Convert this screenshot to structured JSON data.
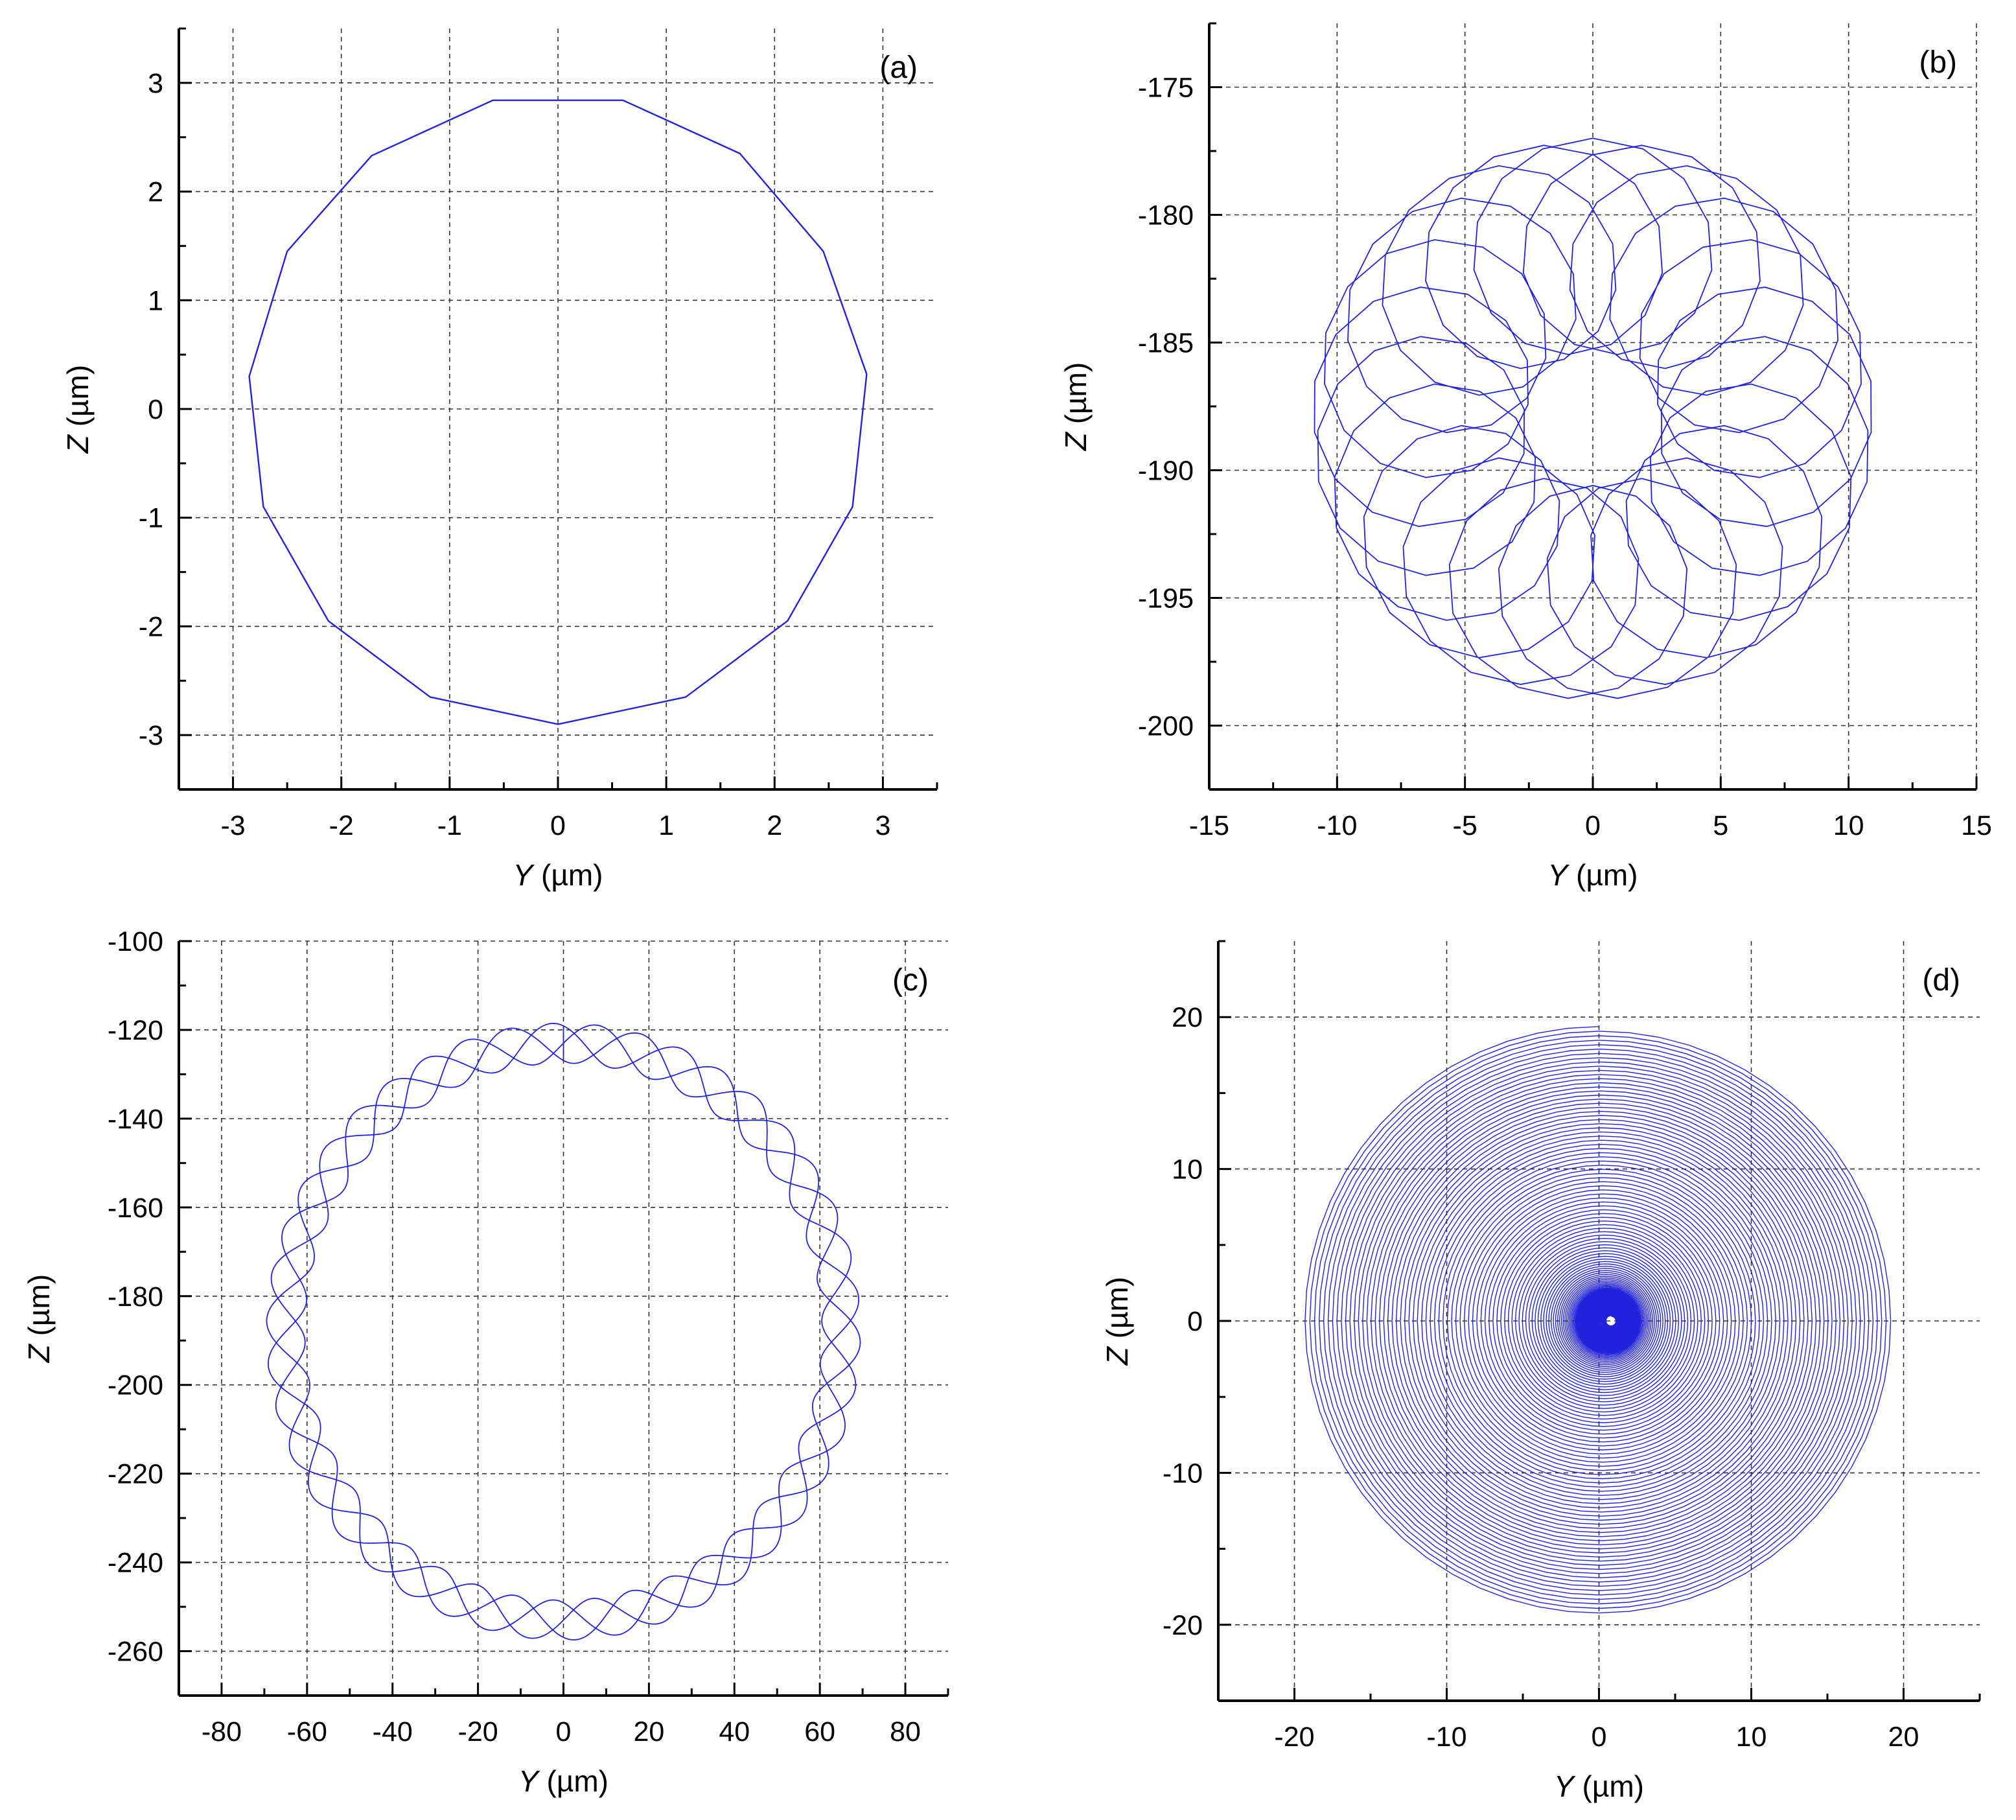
{
  "chart_data": [
    {
      "type": "line",
      "panel_label": "(a)",
      "xlabel": "Y (µm)",
      "xlabel_italic": "Y",
      "xlabel_unit": " (µm)",
      "ylabel": "Z (µm)",
      "ylabel_italic": "Z",
      "ylabel_unit": " (µm)",
      "xlim": [
        -3.5,
        3.5
      ],
      "ylim": [
        -3.5,
        3.5
      ],
      "xticks": [
        -3,
        -2,
        -1,
        0,
        1,
        2,
        3
      ],
      "yticks": [
        -3,
        -2,
        -1,
        0,
        1,
        2,
        3
      ],
      "xtick_labels": [
        "-3",
        "-2",
        "-1",
        "0",
        "1",
        "2",
        "3"
      ],
      "ytick_labels": [
        "-3",
        "-2",
        "-1",
        "0",
        "1",
        "2",
        "3"
      ],
      "grid": true,
      "line_color": "#2222dd",
      "series": [
        {
          "x": [
            0.6,
            1.68,
            2.45,
            2.85,
            2.72,
            2.12,
            1.18,
            0.0,
            -1.18,
            -2.12,
            -2.72,
            -2.85,
            -2.5,
            -1.72,
            -0.6,
            0.6
          ],
          "y": [
            2.84,
            2.35,
            1.45,
            0.32,
            -0.9,
            -1.95,
            -2.65,
            -2.9,
            -2.65,
            -1.95,
            -0.9,
            0.3,
            1.45,
            2.33,
            2.84,
            2.84
          ]
        }
      ]
    },
    {
      "type": "line",
      "panel_label": "(b)",
      "xlabel": "Y (µm)",
      "xlabel_italic": "Y",
      "xlabel_unit": " (µm)",
      "ylabel": "Z (µm)",
      "ylabel_italic": "Z",
      "ylabel_unit": " (µm)",
      "xlim": [
        -15,
        15
      ],
      "ylim": [
        -202.5,
        -172.5
      ],
      "xticks": [
        -15,
        -10,
        -5,
        0,
        5,
        10,
        15
      ],
      "yticks": [
        -175,
        -180,
        -185,
        -190,
        -195,
        -200
      ],
      "xtick_labels": [
        "-15",
        "-10",
        "-5",
        "0",
        "5",
        "10",
        "15"
      ],
      "ytick_labels": [
        "-175",
        "-180",
        "-185",
        "-190",
        "-195",
        "-200"
      ],
      "grid": true,
      "line_color": "#2222dd",
      "curve": {
        "kind": "epitrochoid",
        "center": [
          0,
          -188
        ],
        "R": 6.8,
        "r": 4.2,
        "lobes": 22,
        "revolutions": 1,
        "samples_per_lobe": 14
      }
    },
    {
      "type": "line",
      "panel_label": "(c)",
      "xlabel": "Y (µm)",
      "xlabel_italic": "Y",
      "xlabel_unit": " (µm)",
      "ylabel": "Z (µm)",
      "ylabel_italic": "Z",
      "ylabel_unit": " (µm)",
      "xlim": [
        -90,
        90
      ],
      "ylim": [
        -270,
        -100
      ],
      "xticks": [
        -80,
        -60,
        -40,
        -20,
        0,
        20,
        40,
        60,
        80
      ],
      "yticks": [
        -100,
        -120,
        -140,
        -160,
        -180,
        -200,
        -220,
        -240,
        -260
      ],
      "xtick_labels": [
        "-80",
        "-60",
        "-40",
        "-20",
        "0",
        "20",
        "40",
        "60",
        "80"
      ],
      "ytick_labels": [
        "-100",
        "-120",
        "-140",
        "-160",
        "-180",
        "-200",
        "-220",
        "-240",
        "-260"
      ],
      "grid": true,
      "line_color": "#2222dd",
      "curve": {
        "kind": "modulated-circle",
        "center": [
          0,
          -188
        ],
        "radius": 65,
        "amplitude": 4.5,
        "lobes": 14,
        "strands": 3
      }
    },
    {
      "type": "line",
      "panel_label": "(d)",
      "xlabel": "Y (µm)",
      "xlabel_italic": "Y",
      "xlabel_unit": " (µm)",
      "ylabel": "Z (µm)",
      "ylabel_italic": "Z",
      "ylabel_unit": " (µm)",
      "xlim": [
        -25,
        25
      ],
      "ylim": [
        -25,
        25
      ],
      "xticks": [
        -20,
        -10,
        0,
        10,
        20
      ],
      "yticks": [
        20,
        10,
        0,
        -10,
        -20
      ],
      "xtick_labels": [
        "-20",
        "-10",
        "0",
        "10",
        "20"
      ],
      "ytick_labels": [
        "20",
        "10",
        "0",
        "-10",
        "-20"
      ],
      "grid": true,
      "line_color": "#2222dd",
      "curve": {
        "kind": "spiral",
        "center": [
          0,
          0
        ],
        "r_min": 0.3,
        "r_max": 19.6,
        "turns": 120
      }
    }
  ]
}
